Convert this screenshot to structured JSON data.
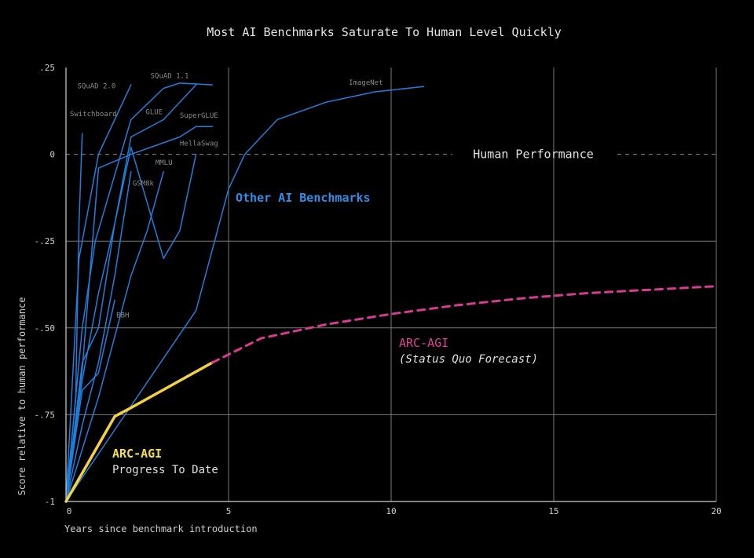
{
  "chart_data": {
    "type": "line",
    "title": "Most AI Benchmarks Saturate To Human Level Quickly",
    "xlabel": "Years since benchmark introduction",
    "ylabel": "Score relative to human performance",
    "xlim": [
      0,
      20
    ],
    "ylim": [
      -1,
      0.25
    ],
    "x_ticks": [
      0,
      5,
      10,
      15,
      20
    ],
    "x_tick_labels": [
      "0",
      "5",
      "10",
      "15",
      "20"
    ],
    "y_ticks": [
      -1,
      -0.75,
      -0.5,
      -0.25,
      0,
      0.25
    ],
    "y_tick_labels": [
      "-1",
      "-.75",
      "-.50",
      "-.25",
      "0",
      ".25"
    ],
    "grid": true,
    "human_line": {
      "y": 0,
      "label": "Human Performance"
    },
    "colors": {
      "benchmarks": "#1f7fdc",
      "arc_progress": "#f5d142",
      "arc_forecast": "#d93a93",
      "grid": "#7a7a7a"
    },
    "group_labels": {
      "other": "Other AI Benchmarks",
      "arc_forecast_title": "ARC-AGI",
      "arc_forecast_sub": "(Status Quo Forecast)",
      "arc_progress_title": "ARC-AGI",
      "arc_progress_sub": "Progress To Date"
    },
    "series": [
      {
        "name": "Switchboard",
        "x": [
          0,
          0.3,
          0.4,
          0.5
        ],
        "y": [
          -1,
          -0.7,
          -0.2,
          0.06
        ]
      },
      {
        "name": "SQuAD 2.0",
        "x": [
          0,
          0.4,
          1.0,
          2.0
        ],
        "y": [
          -1,
          -0.3,
          0.0,
          0.2
        ]
      },
      {
        "name": "SQuAD 1.1",
        "x": [
          0,
          0.5,
          0.9,
          2.0,
          3.0,
          3.5,
          4.5
        ],
        "y": [
          -1,
          -0.5,
          -0.25,
          0.1,
          0.19,
          0.205,
          0.2
        ]
      },
      {
        "name": "GLUE",
        "x": [
          0,
          0.5,
          1.0,
          1.5,
          2.0,
          3.0,
          4.0
        ],
        "y": [
          -1,
          -0.65,
          -0.4,
          -0.2,
          0.05,
          0.1,
          0.2
        ]
      },
      {
        "name": "SuperGLUE",
        "x": [
          0,
          0.5,
          1.0,
          2.0,
          3.5,
          4.0,
          4.5
        ],
        "y": [
          -1,
          -0.62,
          -0.04,
          0.0,
          0.05,
          0.08,
          0.08
        ]
      },
      {
        "name": "HellaSwag",
        "x": [
          0,
          0.5,
          1.0,
          1.5,
          2.0,
          3.0,
          3.5,
          4.0
        ],
        "y": [
          -1,
          -0.6,
          -0.5,
          -0.2,
          0.02,
          -0.3,
          -0.22,
          0.0
        ]
      },
      {
        "name": "MMLU",
        "x": [
          0,
          1.0,
          2.0,
          2.5,
          3.0
        ],
        "y": [
          -1,
          -0.7,
          -0.35,
          -0.22,
          -0.05
        ]
      },
      {
        "name": "GSM8k",
        "x": [
          0,
          0.5,
          1.0,
          1.5,
          2.0
        ],
        "y": [
          -1,
          -0.78,
          -0.6,
          -0.35,
          -0.05
        ]
      },
      {
        "name": "BBH",
        "x": [
          0,
          0.5,
          1.0,
          1.5
        ],
        "y": [
          -1,
          -0.68,
          -0.63,
          -0.42
        ]
      },
      {
        "name": "ImageNet",
        "x": [
          0,
          4.0,
          5.0,
          5.5,
          6.5,
          8.0,
          9.5,
          11.0
        ],
        "y": [
          -1,
          -0.45,
          -0.1,
          0.0,
          0.1,
          0.15,
          0.18,
          0.195
        ]
      },
      {
        "name": "ARC-AGI",
        "x": [
          0,
          1.5,
          2.0,
          4.5
        ],
        "y": [
          -1,
          -0.755,
          -0.73,
          -0.6
        ]
      },
      {
        "name": "ARC-AGI (Status Quo Forecast)",
        "x": [
          4.5,
          6.0,
          8.0,
          10.0,
          12.0,
          14.0,
          16.0,
          18.0,
          20.0
        ],
        "y": [
          -0.6,
          -0.53,
          -0.49,
          -0.46,
          -0.435,
          -0.415,
          -0.4,
          -0.39,
          -0.38
        ]
      }
    ],
    "annotations": [
      {
        "text": "Switchboard",
        "x": 0.12,
        "y": 0.11
      },
      {
        "text": "SQuAD 2.0",
        "x": 0.35,
        "y": 0.19
      },
      {
        "text": "SQuAD 1.1",
        "x": 2.6,
        "y": 0.22
      },
      {
        "text": "GLUE",
        "x": 2.45,
        "y": 0.115
      },
      {
        "text": "SuperGLUE",
        "x": 3.5,
        "y": 0.105
      },
      {
        "text": "HellaSwag",
        "x": 3.5,
        "y": 0.025
      },
      {
        "text": "MMLU",
        "x": 2.75,
        "y": -0.03
      },
      {
        "text": "GSM8k",
        "x": 2.05,
        "y": -0.09
      },
      {
        "text": "BBH",
        "x": 1.55,
        "y": -0.47
      },
      {
        "text": "ImageNet",
        "x": 8.7,
        "y": 0.2
      }
    ]
  }
}
